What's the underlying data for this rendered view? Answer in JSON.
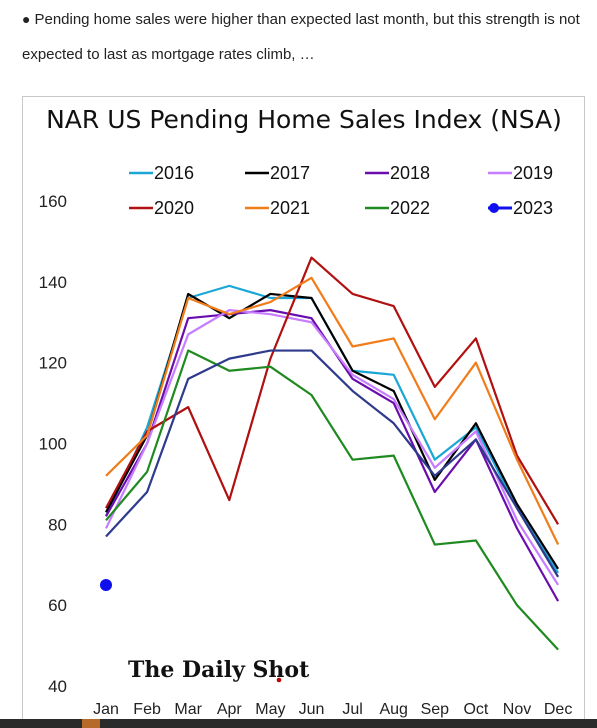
{
  "bullet": {
    "text": "Pending home sales were higher than expected last month, but this strength is not expected to last as mortgage rates climb, …"
  },
  "chart_data": {
    "type": "line",
    "title": "NAR US Pending Home Sales Index (NSA)",
    "categories": [
      "Jan",
      "Feb",
      "Mar",
      "Apr",
      "May",
      "Jun",
      "Jul",
      "Aug",
      "Sep",
      "Oct",
      "Nov",
      "Dec"
    ],
    "ylim": [
      40,
      160
    ],
    "yticks": [
      40,
      60,
      80,
      100,
      120,
      140,
      160
    ],
    "xlabel": "",
    "ylabel": "",
    "grid": false,
    "legend_position": "top",
    "series": [
      {
        "name": "2016",
        "color": "#1aa7d6",
        "values": [
          82,
          104,
          136,
          139,
          136,
          136,
          118,
          117,
          96,
          104,
          84,
          68
        ]
      },
      {
        "name": "2017",
        "color": "#000000",
        "values": [
          83,
          102,
          137,
          131,
          137,
          136,
          118,
          113,
          91,
          105,
          85,
          69
        ]
      },
      {
        "name": "2018",
        "color": "#6a0dad",
        "values": [
          82,
          100,
          131,
          132,
          133,
          131,
          116,
          110,
          88,
          101,
          79,
          61
        ]
      },
      {
        "name": "2019",
        "color": "#c77dff",
        "values": [
          79,
          100,
          127,
          133,
          132,
          130,
          117,
          111,
          94,
          103,
          81,
          65
        ]
      },
      {
        "name": "2020",
        "color": "#b01010",
        "values": [
          84,
          103,
          109,
          86,
          121,
          146,
          137,
          134,
          114,
          126,
          97,
          80
        ]
      },
      {
        "name": "2021",
        "color": "#f07c1a",
        "values": [
          92,
          102,
          136,
          132,
          135,
          141,
          124,
          126,
          106,
          120,
          96,
          75
        ]
      },
      {
        "name": "2022",
        "color": "#1f8a1f",
        "values": [
          81,
          93,
          123,
          118,
          119,
          112,
          96,
          97,
          75,
          76,
          60,
          49
        ]
      },
      {
        "name": "2023",
        "color": "#1010ee",
        "values": [
          65,
          null,
          null,
          null,
          null,
          null,
          null,
          null,
          null,
          null,
          null,
          null
        ],
        "marker": true
      },
      {
        "name": "",
        "color": "#2e3a8c",
        "values": [
          77,
          88,
          116,
          121,
          123,
          123,
          113,
          105,
          92,
          101,
          84,
          67
        ]
      }
    ],
    "watermark": "The Daily Shot"
  }
}
